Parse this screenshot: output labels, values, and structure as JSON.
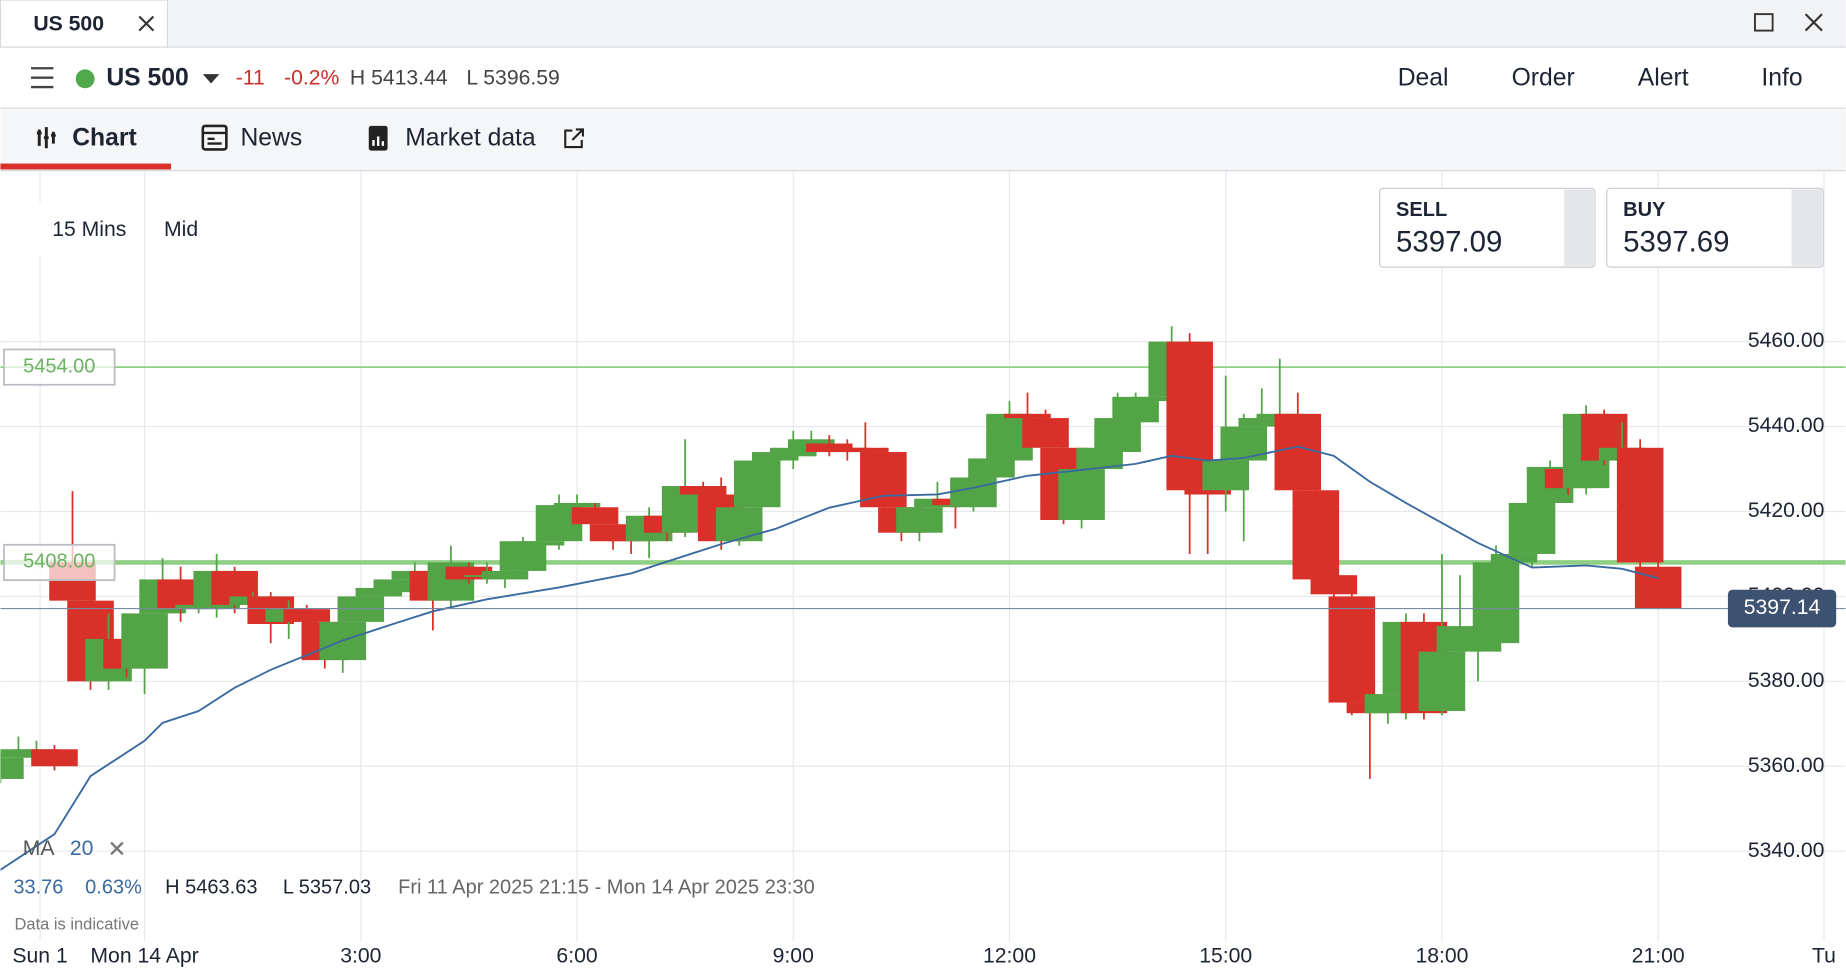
{
  "window": {
    "tab": "US 500"
  },
  "header": {
    "instrument": "US 500",
    "change": "-11",
    "change_pct": "-0.2%",
    "high": "H 5413.44",
    "low": "L 5396.59",
    "actions": [
      "Deal",
      "Order",
      "Alert",
      "Info"
    ]
  },
  "tabs": [
    "Chart",
    "News",
    "Market data"
  ],
  "toolbar": {
    "interval": "15 Mins",
    "price_type": "Mid"
  },
  "quotes": [
    {
      "label": "SELL",
      "price": "5397.09"
    },
    {
      "label": "BUY",
      "price": "5397.69"
    }
  ],
  "indicator": {
    "name": "MA",
    "period": "20"
  },
  "stats": {
    "change": "33.76",
    "change_pct": "0.63%",
    "high": "H 5463.63",
    "low": "L 5357.03",
    "range": "Fri 11 Apr 2025 21:15 - Mon 14 Apr 2025 23:30"
  },
  "disclaimer": "Data is indicative",
  "chart_data": {
    "type": "candlestick",
    "up_color": "#52a447",
    "down_color": "#d9302a",
    "x": [
      -2,
      -1.75,
      -1.5,
      -1.25,
      -1,
      -0.75,
      -0.5,
      -0.25,
      0,
      0.25,
      0.5,
      0.75,
      1,
      1.25,
      1.5,
      1.75,
      2,
      2.25,
      2.5,
      2.75,
      3,
      3.25,
      3.5,
      3.75,
      4,
      4.25,
      4.5,
      4.75,
      5,
      5.25,
      5.5,
      5.75,
      6,
      6.25,
      6.5,
      6.75,
      7,
      7.25,
      7.5,
      7.75,
      8,
      8.25,
      8.5,
      8.75,
      9,
      9.25,
      9.5,
      9.75,
      10,
      10.25,
      10.5,
      10.75,
      11,
      11.25,
      11.5,
      11.75,
      12,
      12.25,
      12.5,
      12.75,
      13,
      13.25,
      13.5,
      13.75,
      14,
      14.25,
      14.5,
      14.75,
      15,
      15.25,
      15.5,
      15.75,
      16,
      16.25,
      16.5,
      16.75,
      17,
      17.25,
      17.5,
      17.75,
      18,
      18.25,
      18.5,
      18.75,
      19,
      19.25,
      19.5,
      19.75,
      20,
      20.25,
      20.5,
      20.75,
      21
    ],
    "open": [
      5357,
      5362,
      5363,
      5364,
      5408,
      5399,
      5380,
      5390,
      5383,
      5396,
      5404,
      5397,
      5397,
      5406,
      5398,
      5400,
      5394,
      5397,
      5394,
      5385,
      5394,
      5400,
      5401,
      5404,
      5406,
      5399,
      5407,
      5405,
      5404,
      5406,
      5412,
      5413,
      5421,
      5421,
      5417,
      5414,
      5413,
      5419,
      5415,
      5426,
      5424,
      5413,
      5421,
      5432,
      5433,
      5434,
      5436,
      5435,
      5435,
      5434,
      5421,
      5415,
      5421,
      5423,
      5421,
      5428,
      5432,
      5443,
      5442,
      5435,
      5418,
      5430,
      5434,
      5441,
      5446,
      5447,
      5460,
      5426,
      5425,
      5432,
      5440,
      5442,
      5443,
      5425,
      5405,
      5400,
      5375,
      5372.5,
      5377,
      5394,
      5373,
      5387,
      5387,
      5389,
      5408,
      5410,
      5422,
      5430,
      5425.5,
      5443,
      5432,
      5435,
      5407
    ],
    "high": [
      5363,
      5367,
      5366,
      5365,
      5424.8,
      5401,
      5396,
      5395,
      5400,
      5409,
      5407,
      5401,
      5410,
      5407,
      5401,
      5401,
      5399,
      5398,
      5396,
      5395,
      5402,
      5404,
      5406,
      5408,
      5407,
      5412,
      5408,
      5408,
      5407,
      5414,
      5414,
      5424,
      5424,
      5422,
      5418,
      5417,
      5421,
      5422,
      5437,
      5427,
      5428,
      5424,
      5433,
      5435,
      5439,
      5439,
      5438,
      5437,
      5441,
      5435,
      5423,
      5422,
      5427,
      5424,
      5429,
      5434,
      5446,
      5448,
      5444,
      5437,
      5432,
      5438,
      5448,
      5448,
      5451,
      5463.63,
      5462,
      5428,
      5452,
      5443,
      5449,
      5456,
      5448,
      5426,
      5414,
      5402,
      5378,
      5393,
      5396,
      5396,
      5410,
      5405,
      5407,
      5412,
      5414,
      5423,
      5432,
      5431,
      5445,
      5444,
      5441,
      5437,
      5412
    ],
    "low": [
      5356,
      5361,
      5361,
      5359,
      5398,
      5378,
      5378,
      5381,
      5377,
      5393,
      5394,
      5396,
      5395,
      5396,
      5396,
      5389,
      5390,
      5385,
      5383,
      5382,
      5393,
      5399,
      5400,
      5403,
      5392,
      5397,
      5403,
      5403,
      5402,
      5405,
      5411,
      5411,
      5418,
      5416,
      5411,
      5410,
      5409,
      5413,
      5414,
      5422,
      5411,
      5412,
      5418,
      5430,
      5430,
      5433,
      5433,
      5432,
      5432,
      5420,
      5413,
      5413,
      5420,
      5416,
      5420,
      5426,
      5430,
      5437,
      5432,
      5417,
      5416,
      5428,
      5433,
      5440,
      5445,
      5445,
      5410,
      5410,
      5420,
      5413,
      5435,
      5438,
      5420,
      5402,
      5380,
      5372,
      5357.03,
      5370,
      5371,
      5371,
      5372,
      5385,
      5380,
      5387,
      5406,
      5407,
      5420,
      5424,
      5424,
      5431,
      5428,
      5404,
      5397
    ],
    "close": [
      5362,
      5364,
      5364,
      5360,
      5399,
      5380,
      5390,
      5383,
      5396,
      5404,
      5397,
      5398,
      5406,
      5398,
      5400,
      5393.5,
      5397,
      5394,
      5385,
      5394,
      5400,
      5402,
      5404,
      5406,
      5399,
      5408,
      5404,
      5405,
      5406,
      5413,
      5413,
      5421.5,
      5422,
      5417,
      5413,
      5413,
      5419,
      5415,
      5426,
      5424,
      5413,
      5421,
      5432,
      5434,
      5435,
      5437,
      5434,
      5434,
      5434,
      5421,
      5415,
      5421,
      5423,
      5421.5,
      5428,
      5432.5,
      5443,
      5442,
      5435,
      5418,
      5430,
      5435,
      5442,
      5447,
      5447,
      5460,
      5425,
      5424,
      5432,
      5440,
      5442,
      5443,
      5425,
      5404,
      5400.5,
      5375,
      5372.5,
      5377,
      5394,
      5372.5,
      5387,
      5393,
      5391,
      5408,
      5410,
      5422,
      5430.5,
      5425.5,
      5443,
      5432,
      5435,
      5408,
      5397.14
    ],
    "ma": {
      "color": "#3a6aa0",
      "x": [
        -2,
        -1.25,
        -0.75,
        0,
        0.25,
        0.75,
        1.25,
        1.75,
        2.75,
        3.5,
        4,
        4.75,
        5.75,
        6.75,
        7.25,
        8,
        8.75,
        9.5,
        10.25,
        11,
        11.5,
        12.25,
        13,
        13.75,
        14.25,
        14.75,
        15.25,
        16,
        16.5,
        17,
        17.5,
        18,
        18.5,
        19,
        19.25,
        20,
        20.5,
        21
      ],
      "values": [
        5335.6,
        5344,
        5357.7,
        5366,
        5370.2,
        5373,
        5378.5,
        5382.7,
        5389.6,
        5393.8,
        5396.5,
        5399.3,
        5402.1,
        5405.4,
        5408.2,
        5412.3,
        5415.9,
        5420.9,
        5423.7,
        5424,
        5425.6,
        5428.4,
        5429.8,
        5431.2,
        5433.1,
        5432,
        5432.6,
        5435.3,
        5433.1,
        5427,
        5422,
        5417.3,
        5412.6,
        5408.7,
        5406.8,
        5407.3,
        5406.5,
        5404.3
      ]
    },
    "levels": [
      {
        "value": 5454,
        "label": "5454.00"
      },
      {
        "value": 5408,
        "label": "5408.00"
      }
    ],
    "last_price": {
      "value": 5397.14,
      "label": "5397.14"
    },
    "xlim": [
      -2,
      23.6
    ],
    "ylim": [
      5330,
      5500
    ],
    "yticks": [
      {
        "value": 5340,
        "label": "5340.00"
      },
      {
        "value": 5360,
        "label": "5360.00"
      },
      {
        "value": 5380,
        "label": "5380.00"
      },
      {
        "value": 5400,
        "label": "5400.00"
      },
      {
        "value": 5420,
        "label": "5420.00"
      },
      {
        "value": 5440,
        "label": "5440.00"
      },
      {
        "value": 5460,
        "label": "5460.00"
      }
    ],
    "xticks": [
      {
        "value": -1.45,
        "label": "Sun 1"
      },
      {
        "value": 0,
        "label": "Mon 14 Apr"
      },
      {
        "value": 3,
        "label": "3:00"
      },
      {
        "value": 6,
        "label": "6:00"
      },
      {
        "value": 9,
        "label": "9:00"
      },
      {
        "value": 12,
        "label": "12:00"
      },
      {
        "value": 15,
        "label": "15:00"
      },
      {
        "value": 18,
        "label": "18:00"
      },
      {
        "value": 21,
        "label": "21:00"
      },
      {
        "value": 23.3,
        "label": "Tu"
      }
    ],
    "grid": true
  }
}
